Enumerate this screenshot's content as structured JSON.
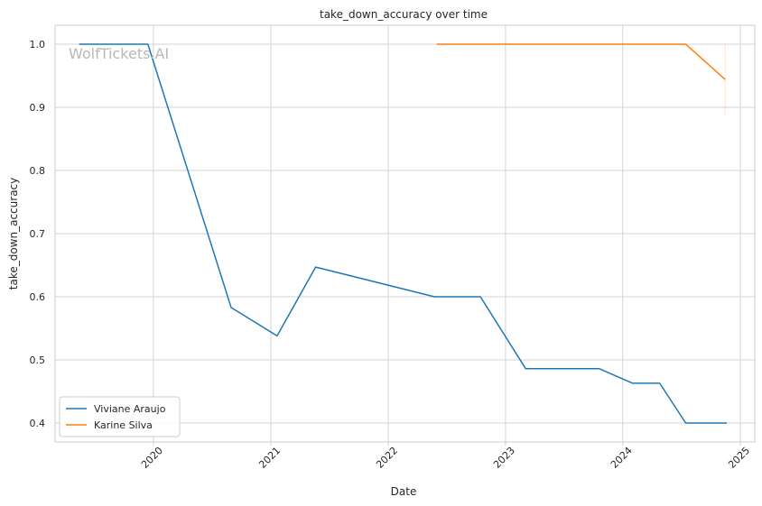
{
  "chart_data": {
    "type": "line",
    "title": "take_down_accuracy over time",
    "xlabel": "Date",
    "ylabel": "take_down_accuracy",
    "watermark": "WolfTickets.AI",
    "x_is_date": true,
    "xlim": [
      "2019-03-01",
      "2025-02-15"
    ],
    "ylim": [
      0.37,
      1.03
    ],
    "x_ticks": [
      {
        "value": "2020-01-01",
        "label": "2020"
      },
      {
        "value": "2021-01-01",
        "label": "2021"
      },
      {
        "value": "2022-01-01",
        "label": "2022"
      },
      {
        "value": "2023-01-01",
        "label": "2023"
      },
      {
        "value": "2024-01-01",
        "label": "2024"
      },
      {
        "value": "2025-01-01",
        "label": "2025"
      }
    ],
    "y_ticks": [
      {
        "value": 0.4,
        "label": "0.4"
      },
      {
        "value": 0.5,
        "label": "0.5"
      },
      {
        "value": 0.6,
        "label": "0.6"
      },
      {
        "value": 0.7,
        "label": "0.7"
      },
      {
        "value": 0.8,
        "label": "0.8"
      },
      {
        "value": 0.9,
        "label": "0.9"
      },
      {
        "value": 1.0,
        "label": "1.0"
      }
    ],
    "grid": true,
    "legend": "lower-left",
    "series": [
      {
        "name": "Viviane Araujo",
        "color": "#1f77b4",
        "x": [
          "2019-05-15",
          "2019-12-15",
          "2020-08-30",
          "2021-01-20",
          "2021-05-20",
          "2022-05-25",
          "2022-10-15",
          "2023-03-05",
          "2023-10-20",
          "2024-02-01",
          "2024-04-25",
          "2024-07-15",
          "2024-11-20"
        ],
        "y": [
          1.0,
          1.0,
          0.583,
          0.538,
          0.647,
          0.6,
          0.6,
          0.486,
          0.486,
          0.463,
          0.463,
          0.4,
          0.4
        ]
      },
      {
        "name": "Karine Silva",
        "color": "#ff7f0e",
        "x": [
          "2022-06-01",
          "2024-07-15",
          "2024-11-15"
        ],
        "y": [
          1.0,
          1.0,
          0.944
        ],
        "error_band": {
          "x": "2024-11-15",
          "low": 0.888,
          "high": 1.0
        }
      }
    ]
  }
}
